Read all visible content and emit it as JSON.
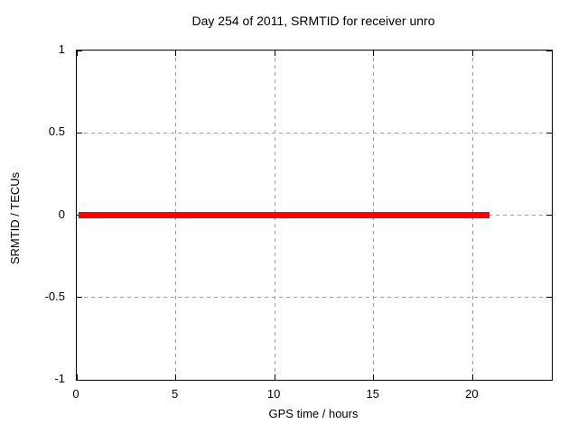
{
  "chart_data": {
    "type": "line",
    "title": "Day 254 of 2011, SRMTID for receiver unro",
    "xlabel": "GPS time / hours",
    "ylabel": "SRMTID / TECUs",
    "xlim": [
      0,
      24
    ],
    "ylim": [
      -1,
      1
    ],
    "xticks": [
      0,
      5,
      10,
      15,
      20
    ],
    "xtick_labels": [
      "0",
      "5",
      "10",
      "15",
      "20"
    ],
    "yticks": [
      -1,
      -0.5,
      0,
      0.5,
      1
    ],
    "ytick_labels": [
      "-1",
      "-0.5",
      "0",
      "0.5",
      "1"
    ],
    "grid": true,
    "grid_style": "dashed",
    "legend": "none",
    "series": [
      {
        "name": "SRMTID",
        "color": "#ff0000",
        "x": [
          0.1,
          20.85
        ],
        "y": [
          0,
          0
        ]
      }
    ],
    "colors": {
      "background": "#ffffff",
      "axis": "#000000",
      "grid": "#a0a0a0",
      "text": "#000000",
      "series": "#ff0000"
    }
  }
}
